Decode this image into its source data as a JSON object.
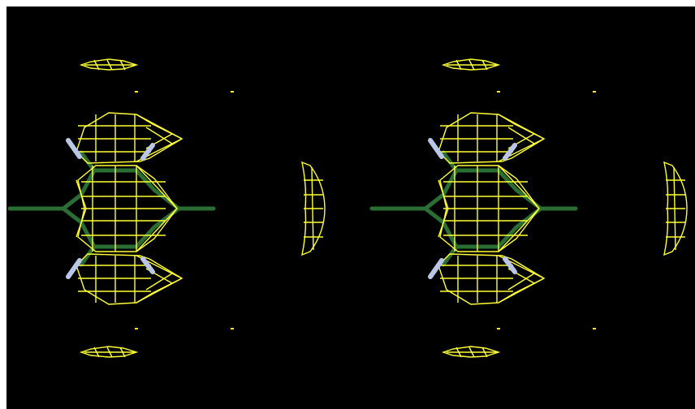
{
  "image": {
    "subject": "stereo-pair-wireframe",
    "views": [
      {
        "name": "left-view"
      },
      {
        "name": "right-view"
      }
    ],
    "colors": {
      "background": "#000000",
      "frame": "#ffffff",
      "wireframe": "#ffff33",
      "filament": "#2f7a3a",
      "attachment": "#b9c6e6"
    }
  }
}
